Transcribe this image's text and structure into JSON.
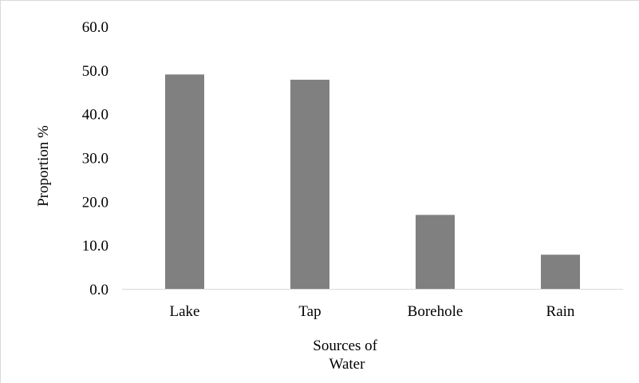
{
  "chart_data": {
    "type": "bar",
    "title": "",
    "categories": [
      "Lake",
      "Tap",
      "Borehole",
      "Rain"
    ],
    "values": [
      49.0,
      47.8,
      16.9,
      7.8
    ],
    "xlabel_lines": [
      "Sources of",
      "Water"
    ],
    "ylabel": "Proportion %",
    "ylim": [
      0,
      60
    ],
    "yticks": [
      "0.0",
      "10.0",
      "20.0",
      "30.0",
      "40.0",
      "50.0",
      "60.0"
    ],
    "grid": false,
    "legend": "none",
    "bar_color": "#808080",
    "axis_color": "#d9d9d9"
  }
}
